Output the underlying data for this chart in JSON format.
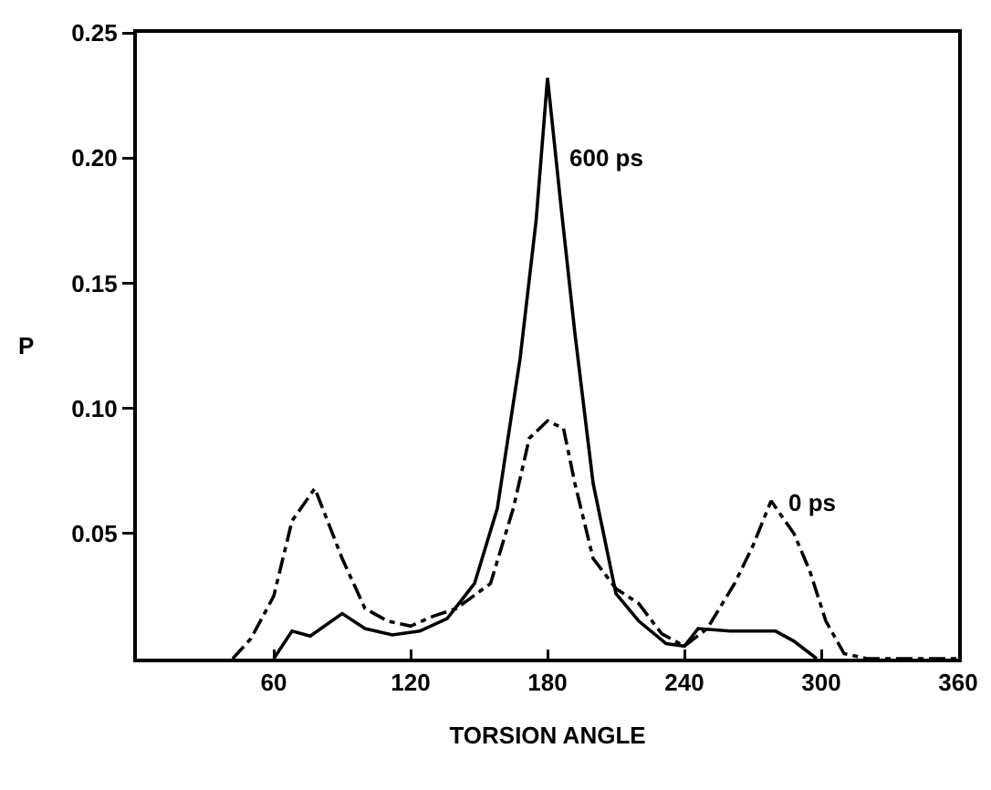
{
  "chart_data": {
    "type": "line",
    "xlabel": "TORSION ANGLE",
    "ylabel": "P",
    "xlim": [
      0,
      360
    ],
    "xticks": [
      60,
      120,
      180,
      240,
      300,
      360
    ],
    "ylim": [
      0,
      0.25
    ],
    "yticks": [
      0.05,
      {
        "value": 0.1,
        "label": "0.10"
      },
      0.15,
      {
        "value": 0.2,
        "label": "0.20"
      },
      0.25
    ],
    "grid": false,
    "marker": "none",
    "series": [
      {
        "color": "#000000",
        "line_style": "solid",
        "x": [
          60,
          68,
          76,
          90,
          100,
          112,
          124,
          136,
          148,
          158,
          168,
          175,
          180,
          186,
          192,
          200,
          210,
          220,
          232,
          240,
          246,
          260,
          280,
          288,
          298
        ],
        "values": [
          0,
          0.011,
          0.009,
          0.018,
          0.012,
          0.0095,
          0.011,
          0.016,
          0.03,
          0.06,
          0.12,
          0.175,
          0.232,
          0.18,
          0.13,
          0.07,
          0.026,
          0.015,
          0.006,
          0.005,
          0.012,
          0.011,
          0.011,
          0.007,
          0
        ]
      },
      {
        "color": "#000000",
        "line_style": "dashdot",
        "x": [
          42,
          50,
          60,
          68,
          78,
          90,
          100,
          110,
          120,
          130,
          140,
          155,
          165,
          172,
          180,
          187,
          192,
          200,
          210,
          220,
          230,
          240,
          250,
          262,
          270,
          278,
          288,
          295,
          302,
          310,
          320,
          360
        ],
        "values": [
          0,
          0.008,
          0.025,
          0.055,
          0.068,
          0.04,
          0.02,
          0.015,
          0.013,
          0.017,
          0.02,
          0.03,
          0.06,
          0.088,
          0.095,
          0.092,
          0.07,
          0.04,
          0.028,
          0.022,
          0.01,
          0.005,
          0.012,
          0.03,
          0.045,
          0.063,
          0.05,
          0.035,
          0.015,
          0.002,
          0,
          0
        ]
      }
    ],
    "annotations": [
      {
        "text": "600 ps",
        "x": 188,
        "y": 0.2
      },
      {
        "text": "0 ps",
        "x": 284,
        "y": 0.062
      }
    ]
  }
}
